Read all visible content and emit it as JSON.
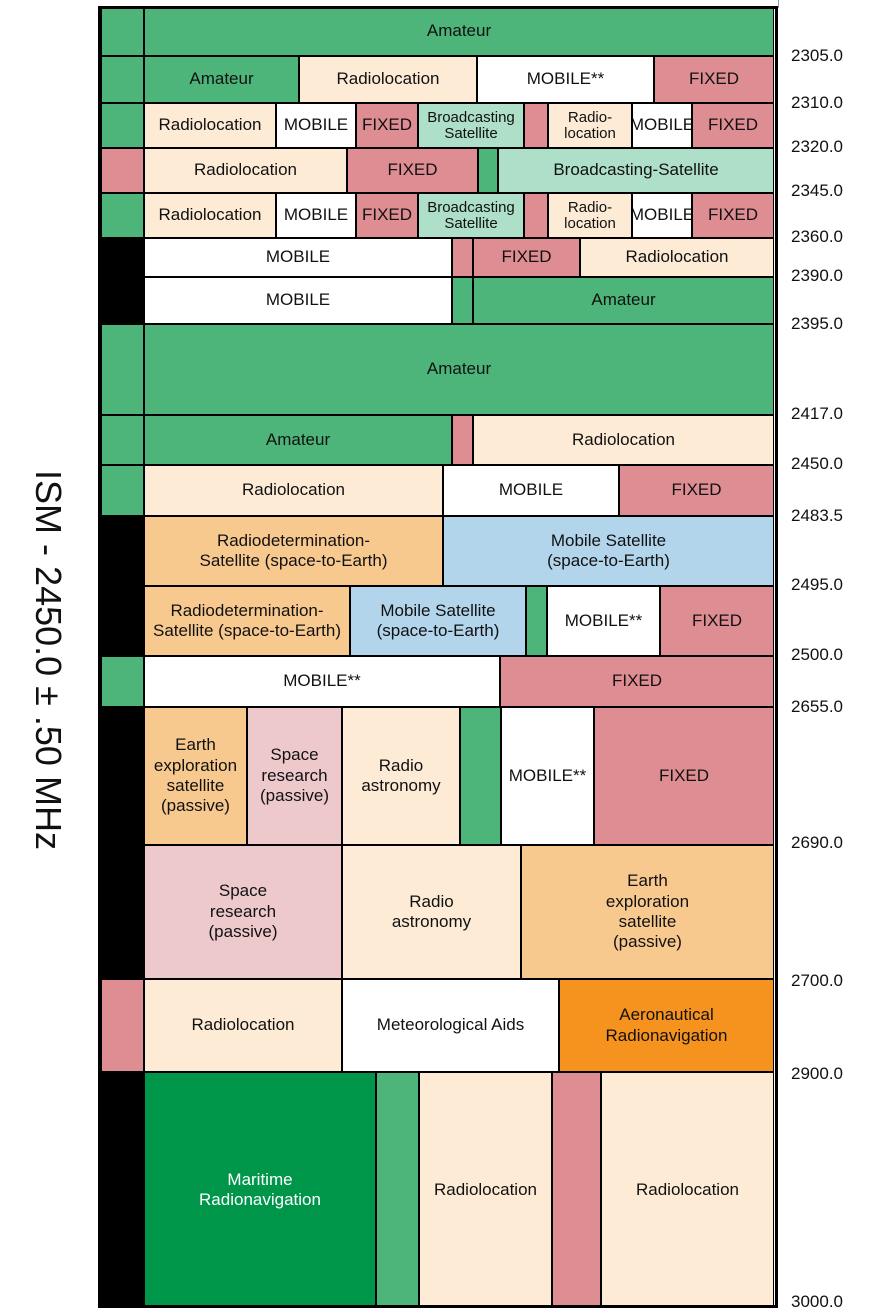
{
  "side_label": "ISM - 2450.0 ± .50 MHz",
  "colors": {
    "amateur": "#4db57a",
    "radioloc": "#fdebd6",
    "mobile": "#ffffff",
    "fixed": "#de8e93",
    "bsat": "#aedfc8",
    "black": "#000000",
    "rdsat": "#f8c98f",
    "mobsat": "#b2d5ec",
    "spres": "#eec9cc",
    "aero": "#f6931e",
    "maritime": "#00964a"
  },
  "frequencies": [
    "2305.0",
    "2310.0",
    "2320.0",
    "2345.0",
    "2360.0",
    "2390.0",
    "2395.0",
    "2417.0",
    "2450.0",
    "2483.5",
    "2495.0",
    "2500.0",
    "2655.0",
    "2690.0",
    "2700.0",
    "2900.0",
    "3000.0"
  ],
  "rows": [
    {
      "side": "amateur",
      "cells": [
        {
          "label": "Amateur",
          "color": "amateur",
          "w": 630
        }
      ]
    },
    {
      "side": "amateur",
      "cells": [
        {
          "label": "Amateur",
          "color": "amateur",
          "w": 155
        },
        {
          "label": "Radiolocation",
          "color": "radioloc",
          "w": 178
        },
        {
          "label": "MOBILE**",
          "color": "mobile",
          "w": 177
        },
        {
          "label": "FIXED",
          "color": "fixed",
          "w": 120
        }
      ]
    },
    {
      "side": "amateur",
      "cells": [
        {
          "label": "Radiolocation",
          "color": "radioloc",
          "w": 132
        },
        {
          "label": "MOBILE",
          "color": "mobile",
          "w": 80
        },
        {
          "label": "FIXED",
          "color": "fixed",
          "w": 62
        },
        {
          "label": "Broadcasting\nSatellite",
          "color": "bsat",
          "w": 106,
          "small": true
        },
        {
          "label": "",
          "color": "fixed",
          "w": 24
        },
        {
          "label": "Radio-\nlocation",
          "color": "radioloc",
          "w": 84,
          "small": true
        },
        {
          "label": "MOBILE",
          "color": "mobile",
          "w": 60
        },
        {
          "label": "FIXED",
          "color": "fixed",
          "w": 82
        }
      ]
    },
    {
      "side": "fixed",
      "cells": [
        {
          "label": "Radiolocation",
          "color": "radioloc",
          "w": 203
        },
        {
          "label": "FIXED",
          "color": "fixed",
          "w": 131
        },
        {
          "label": "",
          "color": "amateur",
          "w": 20
        },
        {
          "label": "Broadcasting-Satellite",
          "color": "bsat",
          "w": 276
        }
      ]
    },
    {
      "side": "amateur",
      "cells": [
        {
          "label": "Radiolocation",
          "color": "radioloc",
          "w": 132
        },
        {
          "label": "MOBILE",
          "color": "mobile",
          "w": 80
        },
        {
          "label": "FIXED",
          "color": "fixed",
          "w": 62
        },
        {
          "label": "Broadcasting\nSatellite",
          "color": "bsat",
          "w": 106,
          "small": true
        },
        {
          "label": "",
          "color": "fixed",
          "w": 24
        },
        {
          "label": "Radio-\nlocation",
          "color": "radioloc",
          "w": 84,
          "small": true
        },
        {
          "label": "MOBILE",
          "color": "mobile",
          "w": 60
        },
        {
          "label": "FIXED",
          "color": "fixed",
          "w": 82
        }
      ]
    },
    {
      "side": "black",
      "cells": [
        {
          "label": "MOBILE",
          "color": "mobile",
          "w": 308
        },
        {
          "label": "",
          "color": "fixed",
          "w": 21
        },
        {
          "label": "FIXED",
          "color": "fixed",
          "w": 107
        },
        {
          "label": "Radiolocation",
          "color": "radioloc",
          "w": 194
        }
      ]
    },
    {
      "side": "black",
      "cells": [
        {
          "label": "MOBILE",
          "color": "mobile",
          "w": 308
        },
        {
          "label": "",
          "color": "amateur",
          "w": 21
        },
        {
          "label": "Amateur",
          "color": "amateur",
          "w": 301
        }
      ]
    },
    {
      "side": "amateur",
      "cells": [
        {
          "label": "Amateur",
          "color": "amateur",
          "w": 630
        }
      ]
    },
    {
      "side": "amateur",
      "cells": [
        {
          "label": "Amateur",
          "color": "amateur",
          "w": 308
        },
        {
          "label": "",
          "color": "fixed",
          "w": 21
        },
        {
          "label": "Radiolocation",
          "color": "radioloc",
          "w": 301
        }
      ]
    },
    {
      "side": "amateur",
      "cells": [
        {
          "label": "Radiolocation",
          "color": "radioloc",
          "w": 299
        },
        {
          "label": "MOBILE",
          "color": "mobile",
          "w": 176
        },
        {
          "label": "FIXED",
          "color": "fixed",
          "w": 155
        }
      ]
    },
    {
      "side": "black",
      "cells": [
        {
          "label": "Radiodetermination-\nSatellite (space-to-Earth)",
          "color": "rdsat",
          "w": 299
        },
        {
          "label": "Mobile Satellite\n(space-to-Earth)",
          "color": "mobsat",
          "w": 331
        }
      ]
    },
    {
      "side": "black",
      "cells": [
        {
          "label": "Radiodetermination-\nSatellite (space-to-Earth)",
          "color": "rdsat",
          "w": 206
        },
        {
          "label": "Mobile Satellite\n(space-to-Earth)",
          "color": "mobsat",
          "w": 176
        },
        {
          "label": "",
          "color": "amateur",
          "w": 21
        },
        {
          "label": "MOBILE**",
          "color": "mobile",
          "w": 113
        },
        {
          "label": "FIXED",
          "color": "fixed",
          "w": 114
        }
      ]
    },
    {
      "side": "amateur",
      "cells": [
        {
          "label": "MOBILE**",
          "color": "mobile",
          "w": 356
        },
        {
          "label": "FIXED",
          "color": "fixed",
          "w": 274
        }
      ]
    },
    {
      "side": "black",
      "cells": [
        {
          "label": "Earth\nexploration\nsatellite\n(passive)",
          "color": "rdsat",
          "w": 103
        },
        {
          "label": "Space\nresearch\n(passive)",
          "color": "spres",
          "w": 95
        },
        {
          "label": "Radio\nastronomy",
          "color": "radioloc",
          "w": 118
        },
        {
          "label": "",
          "color": "amateur",
          "w": 41
        },
        {
          "label": "MOBILE**",
          "color": "mobile",
          "w": 93
        },
        {
          "label": "FIXED",
          "color": "fixed",
          "w": 180
        }
      ]
    },
    {
      "side": "black",
      "cells": [
        {
          "label": "Space\nresearch\n(passive)",
          "color": "spres",
          "w": 198
        },
        {
          "label": "Radio\nastronomy",
          "color": "radioloc",
          "w": 179
        },
        {
          "label": "Earth\nexploration\nsatellite\n(passive)",
          "color": "rdsat",
          "w": 253
        }
      ]
    },
    {
      "side": "fixed",
      "cells": [
        {
          "label": "Radiolocation",
          "color": "radioloc",
          "w": 198
        },
        {
          "label": "Meteorological Aids",
          "color": "mobile",
          "w": 217
        },
        {
          "label": "Aeronautical\nRadionavigation",
          "color": "aero",
          "w": 215
        }
      ]
    },
    {
      "side": "black",
      "cells": [
        {
          "label": "Maritime\nRadionavigation",
          "color": "maritime",
          "w": 232
        },
        {
          "label": "",
          "color": "amateur",
          "w": 43
        },
        {
          "label": "Radiolocation",
          "color": "radioloc",
          "w": 133
        },
        {
          "label": "",
          "color": "fixed",
          "w": 49
        },
        {
          "label": "Radiolocation",
          "color": "radioloc",
          "w": 173
        }
      ]
    }
  ]
}
